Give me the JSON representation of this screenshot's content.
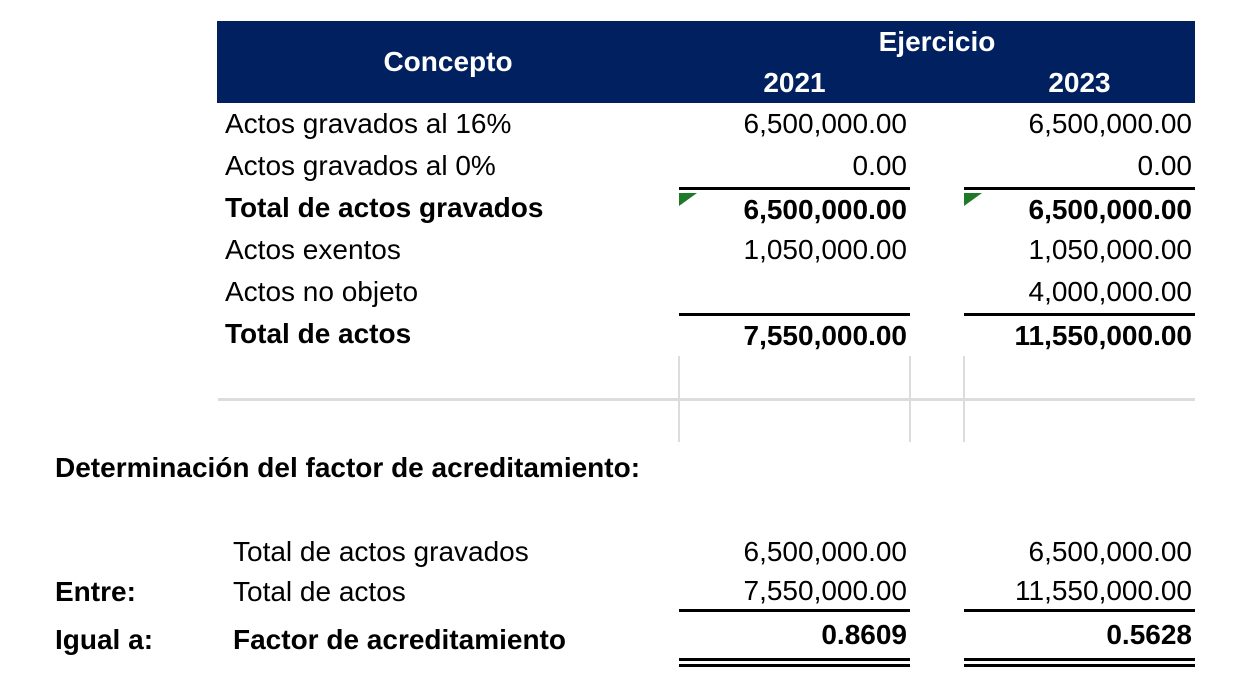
{
  "colors": {
    "header_bg": "#002060",
    "header_text": "#ffffff",
    "gridline": "#dcdcdc",
    "error_triangle_green": "#1e7a28",
    "border": "#000000"
  },
  "header": {
    "concepto": "Concepto",
    "ejercicio": "Ejercicio",
    "years": [
      "2021",
      "2023"
    ]
  },
  "table": {
    "rows": [
      {
        "label": "Actos gravados al 16%",
        "v2021": "6,500,000.00",
        "v2023": "6,500,000.00"
      },
      {
        "label": "Actos gravados al 0%",
        "v2021": "0.00",
        "v2023": "0.00"
      },
      {
        "label": "Total de actos gravados",
        "v2021": "6,500,000.00",
        "v2023": "6,500,000.00"
      },
      {
        "label": "Actos exentos",
        "v2021": "1,050,000.00",
        "v2023": "1,050,000.00"
      },
      {
        "label": "Actos no objeto",
        "v2021": "",
        "v2023": "4,000,000.00"
      },
      {
        "label": "Total de actos",
        "v2021": "7,550,000.00",
        "v2023": "11,550,000.00"
      }
    ]
  },
  "section_title": "Determinación del factor de acreditamiento:",
  "factor_table": {
    "rows": [
      {
        "prefix": "",
        "label": "Total de actos gravados",
        "v2021": "6,500,000.00",
        "v2023": "6,500,000.00"
      },
      {
        "prefix": "Entre:",
        "label": "Total de actos",
        "v2021": "7,550,000.00",
        "v2023": "11,550,000.00"
      },
      {
        "prefix": "Igual a:",
        "label": "Factor de acreditamiento",
        "v2021": "0.8609",
        "v2023": "0.5628"
      }
    ]
  }
}
